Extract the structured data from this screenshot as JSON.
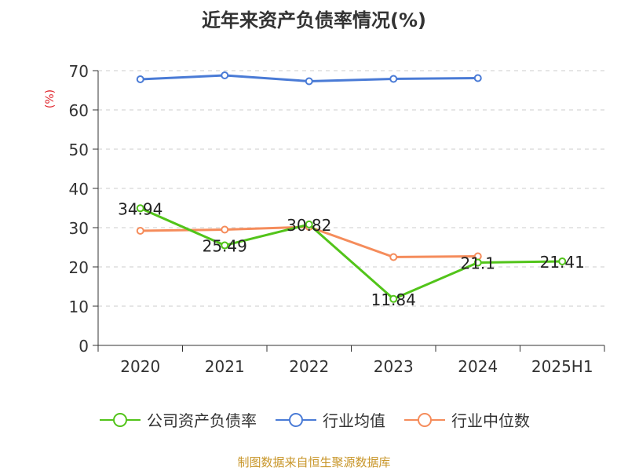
{
  "chart_data": {
    "type": "line",
    "title": "近年来资产负债率情况(%)",
    "ylabel": "(%)",
    "xlabel": "",
    "categories": [
      "2020",
      "2021",
      "2022",
      "2023",
      "2024",
      "2025H1"
    ],
    "ylim": [
      0,
      70
    ],
    "yticks": [
      0,
      10,
      20,
      30,
      40,
      50,
      60,
      70
    ],
    "grid": true,
    "legend_position": "bottom",
    "series": [
      {
        "name": "公司资产负债率",
        "color": "#52c41a",
        "values": [
          34.94,
          25.49,
          30.82,
          11.84,
          21.1,
          21.41
        ],
        "labels": [
          "34.94",
          "25.49",
          "30.82",
          "11.84",
          "21.1",
          "21.41"
        ]
      },
      {
        "name": "行业均值",
        "color": "#4a7bd6",
        "values": [
          67.8,
          68.8,
          67.3,
          67.9,
          68.1,
          null
        ]
      },
      {
        "name": "行业中位数",
        "color": "#f58c5b",
        "values": [
          29.2,
          29.5,
          30.2,
          22.5,
          22.7,
          null
        ]
      }
    ]
  },
  "source": "制图数据来自恒生聚源数据库"
}
